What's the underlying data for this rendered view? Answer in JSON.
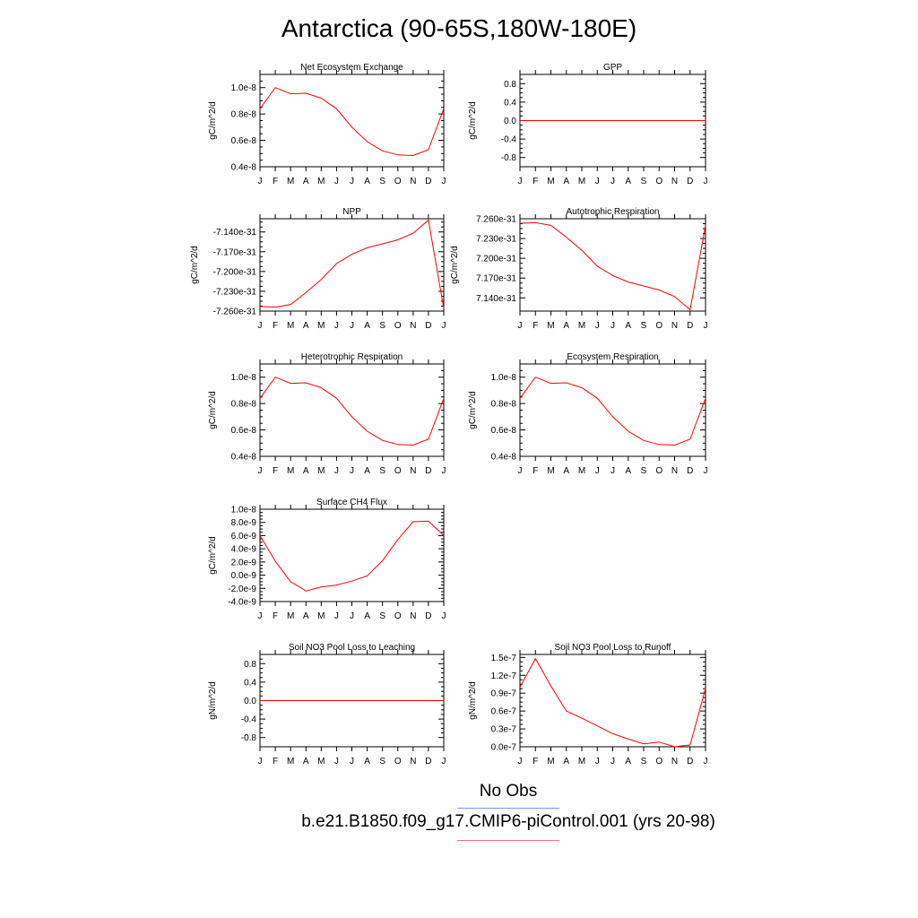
{
  "title": "Antarctica (90-65S,180W-180E)",
  "legend": {
    "obs_label": "No Obs",
    "model_label": "b.e21.B1850.f09_g17.CMIP6-piControl.001 (yrs 20-98)"
  },
  "colors": {
    "model_line": "#ff0000",
    "obs_line": "#8090ff",
    "frame": "#000000"
  },
  "chart_data": [
    {
      "type": "line",
      "title": "Net Ecosystem Exchange",
      "xlabel": "",
      "ylabel": "gC/m^2/d",
      "categories": [
        "J",
        "F",
        "M",
        "A",
        "M",
        "J",
        "J",
        "A",
        "S",
        "O",
        "N",
        "D",
        "J"
      ],
      "ylim": [
        4e-09,
        1.1e-08
      ],
      "yticks": [
        4e-09,
        6e-09,
        8e-09,
        1e-08
      ],
      "ytick_labels": [
        "0.4e-8",
        "0.6e-8",
        "0.8e-8",
        "1.0e-8"
      ],
      "values": [
        8.4e-09,
        1e-08,
        9.53e-09,
        9.57e-09,
        9.2e-09,
        8.4e-09,
        7e-09,
        5.9e-09,
        5.2e-09,
        4.9e-09,
        4.85e-09,
        5.3e-09,
        8.4e-09
      ]
    },
    {
      "type": "line",
      "title": "GPP",
      "xlabel": "",
      "ylabel": "gC/m^2/d",
      "categories": [
        "J",
        "F",
        "M",
        "A",
        "M",
        "J",
        "J",
        "A",
        "S",
        "O",
        "N",
        "D",
        "J"
      ],
      "ylim": [
        -1.0,
        1.0
      ],
      "yticks": [
        -0.8,
        -0.4,
        0.0,
        0.4,
        0.8
      ],
      "ytick_labels": [
        "-0.8",
        "-0.4",
        "0.0",
        "0.4",
        "0.8"
      ],
      "values": [
        0,
        0,
        0,
        0,
        0,
        0,
        0,
        0,
        0,
        0,
        0,
        0,
        0
      ]
    },
    {
      "type": "line",
      "title": "NPP",
      "xlabel": "",
      "ylabel": "gC/m^2/d",
      "categories": [
        "J",
        "F",
        "M",
        "A",
        "M",
        "J",
        "J",
        "A",
        "S",
        "O",
        "N",
        "D",
        "J"
      ],
      "ylim": [
        -7.26e-31,
        -7.12e-31
      ],
      "yticks": [
        -7.26e-31,
        -7.23e-31,
        -7.2e-31,
        -7.17e-31,
        -7.14e-31
      ],
      "ytick_labels": [
        "-7.260e-31",
        "-7.230e-31",
        "-7.200e-31",
        "-7.170e-31",
        "-7.140e-31"
      ],
      "values": [
        -7.253e-31,
        -7.254e-31,
        -7.25e-31,
        -7.232e-31,
        -7.212e-31,
        -7.188e-31,
        -7.174e-31,
        -7.164e-31,
        -7.158e-31,
        -7.152e-31,
        -7.142e-31,
        -7.122e-31,
        -7.256e-31
      ]
    },
    {
      "type": "line",
      "title": "Autotrophic Respiration",
      "xlabel": "",
      "ylabel": "gC/m^2/d",
      "categories": [
        "J",
        "F",
        "M",
        "A",
        "M",
        "J",
        "J",
        "A",
        "S",
        "O",
        "N",
        "D",
        "J"
      ],
      "ylim": [
        7.12e-31,
        7.26e-31
      ],
      "yticks": [
        7.14e-31,
        7.17e-31,
        7.2e-31,
        7.23e-31,
        7.26e-31
      ],
      "ytick_labels": [
        "7.140e-31",
        "7.170e-31",
        "7.200e-31",
        "7.230e-31",
        "7.260e-31"
      ],
      "values": [
        7.253e-31,
        7.254e-31,
        7.25e-31,
        7.232e-31,
        7.212e-31,
        7.188e-31,
        7.174e-31,
        7.164e-31,
        7.158e-31,
        7.152e-31,
        7.142e-31,
        7.122e-31,
        7.25e-31
      ]
    },
    {
      "type": "line",
      "title": "Heterotrophic Respiration",
      "xlabel": "",
      "ylabel": "gC/m^2/d",
      "categories": [
        "J",
        "F",
        "M",
        "A",
        "M",
        "J",
        "J",
        "A",
        "S",
        "O",
        "N",
        "D",
        "J"
      ],
      "ylim": [
        4e-09,
        1.1e-08
      ],
      "yticks": [
        4e-09,
        6e-09,
        8e-09,
        1e-08
      ],
      "ytick_labels": [
        "0.4e-8",
        "0.6e-8",
        "0.8e-8",
        "1.0e-8"
      ],
      "values": [
        8.4e-09,
        1e-08,
        9.53e-09,
        9.57e-09,
        9.2e-09,
        8.4e-09,
        7e-09,
        5.9e-09,
        5.2e-09,
        4.9e-09,
        4.85e-09,
        5.3e-09,
        8.4e-09
      ]
    },
    {
      "type": "line",
      "title": "Ecosystem Respiration",
      "xlabel": "",
      "ylabel": "gC/m^2/d",
      "categories": [
        "J",
        "F",
        "M",
        "A",
        "M",
        "J",
        "J",
        "A",
        "S",
        "O",
        "N",
        "D",
        "J"
      ],
      "ylim": [
        4e-09,
        1.1e-08
      ],
      "yticks": [
        4e-09,
        6e-09,
        8e-09,
        1e-08
      ],
      "ytick_labels": [
        "0.4e-8",
        "0.6e-8",
        "0.8e-8",
        "1.0e-8"
      ],
      "values": [
        8.4e-09,
        1e-08,
        9.53e-09,
        9.57e-09,
        9.2e-09,
        8.4e-09,
        7e-09,
        5.9e-09,
        5.2e-09,
        4.9e-09,
        4.85e-09,
        5.3e-09,
        8.4e-09
      ]
    },
    {
      "type": "line",
      "title": "Surface CH4 Flux",
      "xlabel": "",
      "ylabel": "gC/m^2/d",
      "categories": [
        "J",
        "F",
        "M",
        "A",
        "M",
        "J",
        "J",
        "A",
        "S",
        "O",
        "N",
        "D",
        "J"
      ],
      "ylim": [
        -4e-09,
        1e-08
      ],
      "yticks": [
        -4e-09,
        -2e-09,
        0.0,
        2e-09,
        4e-09,
        6e-09,
        8e-09,
        1e-08
      ],
      "ytick_labels": [
        "-4.0e-9",
        "-2.0e-9",
        "0.0e-9",
        "2.0e-9",
        "4.0e-9",
        "6.0e-9",
        "8.0e-9",
        "1.0e-8"
      ],
      "values": [
        6e-09,
        2.1e-09,
        -1e-09,
        -2.4e-09,
        -1.8e-09,
        -1.5e-09,
        -9e-10,
        -1e-10,
        2.2e-09,
        5.4e-09,
        8.1e-09,
        8.2e-09,
        6e-09
      ]
    },
    {
      "type": "line",
      "title": "Soil NO3 Pool Loss to Leaching",
      "xlabel": "",
      "ylabel": "gN/m^2/d",
      "categories": [
        "J",
        "F",
        "M",
        "A",
        "M",
        "J",
        "J",
        "A",
        "S",
        "O",
        "N",
        "D",
        "J"
      ],
      "ylim": [
        -1.0,
        1.0
      ],
      "yticks": [
        -0.8,
        -0.4,
        0.0,
        0.4,
        0.8
      ],
      "ytick_labels": [
        "-0.8",
        "-0.4",
        "0.0",
        "0.4",
        "0.8"
      ],
      "values": [
        0,
        0,
        0,
        0,
        0,
        0,
        0,
        0,
        0,
        0,
        0,
        0,
        0
      ]
    },
    {
      "type": "line",
      "title": "Soil NO3 Pool Loss to Runoff",
      "xlabel": "",
      "ylabel": "gN/m^2/d",
      "categories": [
        "J",
        "F",
        "M",
        "A",
        "M",
        "J",
        "J",
        "A",
        "S",
        "O",
        "N",
        "D",
        "J"
      ],
      "ylim": [
        0.0,
        1.55e-07
      ],
      "yticks": [
        0.0,
        3e-08,
        6e-08,
        9e-08,
        1.2e-07,
        1.5e-07
      ],
      "ytick_labels": [
        "0.0e-7",
        "0.3e-7",
        "0.6e-7",
        "0.9e-7",
        "1.2e-7",
        "1.5e-7"
      ],
      "values": [
        1e-07,
        1.48e-07,
        1.02e-07,
        6e-08,
        4.8e-08,
        3.5e-08,
        2.2e-08,
        1.3e-08,
        5e-09,
        8e-09,
        0.0,
        3e-09,
        9.8e-08
      ]
    }
  ]
}
